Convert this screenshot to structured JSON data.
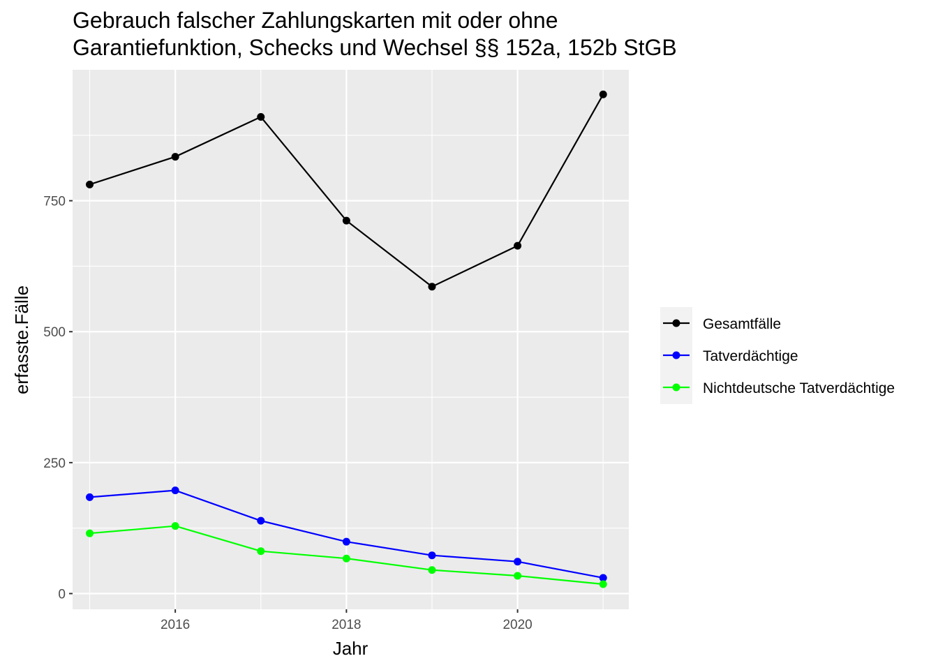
{
  "chart_data": {
    "type": "line",
    "title_lines": [
      "Gebrauch falscher Zahlungskarten mit oder ohne",
      "Garantiefunktion, Schecks und Wechsel §§ 152a, 152b StGB"
    ],
    "xlabel": "Jahr",
    "ylabel": "erfasste.Fälle",
    "x": [
      2015,
      2016,
      2017,
      2018,
      2019,
      2020,
      2021
    ],
    "xlim": [
      2014.8,
      2021.3
    ],
    "ylim": [
      -30,
      1000
    ],
    "x_ticks": [
      2016,
      2018,
      2020
    ],
    "x_tick_labels": [
      "2016",
      "2018",
      "2020"
    ],
    "y_ticks": [
      0,
      250,
      500,
      750
    ],
    "y_tick_labels": [
      "0",
      "250",
      "500",
      "750"
    ],
    "grid": true,
    "legend_position": "right",
    "series": [
      {
        "name": "Gesamtfälle",
        "color": "#000000",
        "values": [
          781,
          834,
          910,
          712,
          586,
          664,
          953
        ]
      },
      {
        "name": "Tatverdächtige",
        "color": "#0000ff",
        "values": [
          184,
          197,
          139,
          99,
          73,
          61,
          30
        ]
      },
      {
        "name": "Nichtdeutsche Tatverdächtige",
        "color": "#00ff00",
        "values": [
          115,
          129,
          81,
          67,
          45,
          34,
          18
        ]
      }
    ]
  }
}
